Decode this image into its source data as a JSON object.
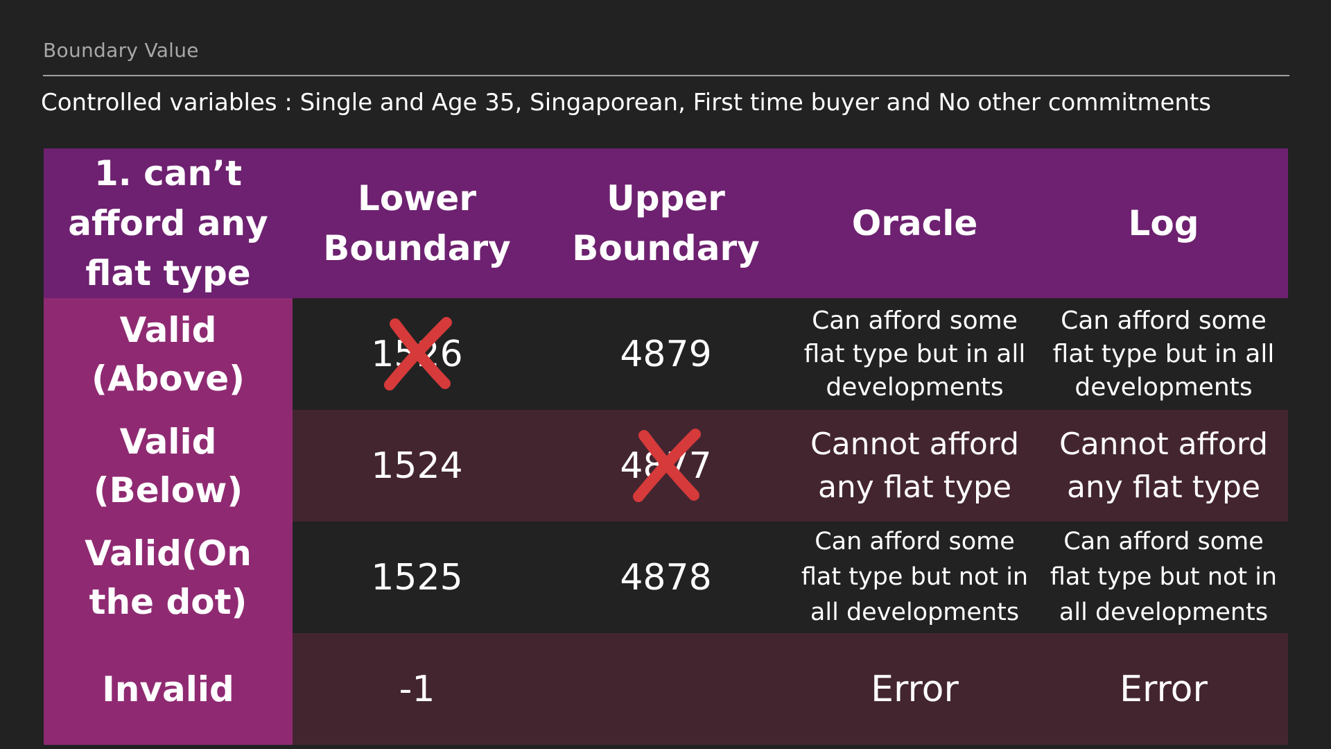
{
  "slide": {
    "label": "Boundary Value",
    "subtitle": "Controlled variables : Single and Age 35, Singaporean, First time buyer and No other commitments"
  },
  "table": {
    "headers": [
      "1. can’t afford any flat type",
      "Lower Boundary",
      "Upper Boundary",
      "Oracle",
      "Log"
    ],
    "rows": [
      {
        "label": "Valid (Above)",
        "lower": "1526",
        "lower_crossed": true,
        "upper": "4879",
        "upper_crossed": false,
        "oracle": "Can afford some flat type but in all developments",
        "log": "Can afford some flat type but in all developments"
      },
      {
        "label": "Valid (Below)",
        "lower": "1524",
        "lower_crossed": false,
        "upper": "4877",
        "upper_crossed": true,
        "oracle": "Cannot afford any flat type",
        "log": "Cannot afford any flat type"
      },
      {
        "label": "Valid(On the dot)",
        "lower": "1525",
        "lower_crossed": false,
        "upper": "4878",
        "upper_crossed": false,
        "oracle": "Can afford some flat type but not in all developments",
        "log": "Can afford some flat type but not in all developments"
      },
      {
        "label": "Invalid",
        "lower": "-1",
        "lower_crossed": false,
        "upper": "",
        "upper_crossed": false,
        "oracle": "Error",
        "log": "Error"
      }
    ]
  },
  "colors": {
    "background": "#222222",
    "header_purple": "#6e2170",
    "row_label_magenta": "#8f2a72",
    "row_maroon": "#432530",
    "cross_red": "#d63a3a"
  },
  "icons": {
    "cross_mark": "red-x-cross-icon"
  }
}
